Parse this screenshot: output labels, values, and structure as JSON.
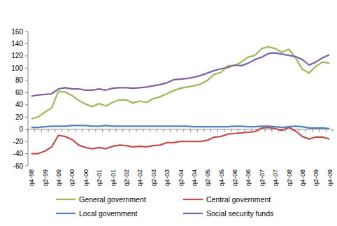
{
  "chart_data": {
    "type": "line",
    "categories": [
      "q4-98",
      null,
      "q2-99",
      null,
      "q4-99",
      null,
      "q2-00",
      null,
      "q4-00",
      null,
      "q2-01",
      null,
      "q4-01",
      null,
      "q2-02",
      null,
      "q4-02",
      null,
      "q2-03",
      null,
      "q4-03",
      null,
      "q2-04",
      null,
      "q4-04",
      null,
      "q2-05",
      null,
      "q4-05",
      null,
      "q2-06",
      null,
      "q4-06",
      null,
      "q2-07",
      null,
      "q4-07",
      null,
      "q2-08",
      null,
      "q4-08",
      null,
      "q2-09",
      null,
      "q4-09"
    ],
    "series": [
      {
        "name": "General government",
        "color": "#9bbb59",
        "values": [
          17,
          20,
          28,
          35,
          62,
          61,
          55,
          47,
          41,
          37,
          42,
          38,
          44,
          48,
          48,
          43,
          46,
          44,
          50,
          53,
          58,
          63,
          67,
          69,
          71,
          74,
          80,
          90,
          93,
          104,
          104,
          110,
          118,
          121,
          132,
          135,
          132,
          126,
          131,
          117,
          98,
          92,
          103,
          110,
          108
        ]
      },
      {
        "name": "Central government",
        "color": "#c0504d",
        "values": [
          -40,
          -40,
          -36,
          -29,
          -10,
          -12,
          -17,
          -26,
          -30,
          -32,
          -30,
          -32,
          -28,
          -26,
          -27,
          -29,
          -28,
          -29,
          -27,
          -26,
          -22,
          -22,
          -20,
          -20,
          -20,
          -20,
          -18,
          -13,
          -12,
          -8,
          -7,
          -6,
          -5,
          -4,
          2,
          3,
          1,
          -2,
          3,
          -3,
          -12,
          -16,
          -13,
          -13,
          -16
        ]
      },
      {
        "name": "Local government",
        "color": "#4f81bd",
        "values": [
          3,
          3,
          4,
          5,
          5,
          5,
          6,
          6,
          6,
          5,
          5,
          6,
          5,
          5,
          5,
          5,
          5,
          5,
          5,
          5,
          5,
          5,
          5,
          5,
          4,
          4,
          4,
          4,
          4,
          4,
          5,
          5,
          4,
          4,
          5,
          5,
          4,
          3,
          4,
          5,
          4,
          2,
          2,
          2,
          1
        ]
      },
      {
        "name": "Social security funds",
        "color": "#8064a2",
        "values": [
          54,
          56,
          57,
          58,
          66,
          68,
          66,
          66,
          64,
          64,
          66,
          64,
          67,
          68,
          68,
          67,
          68,
          69,
          71,
          73,
          76,
          81,
          82,
          83,
          85,
          88,
          92,
          96,
          99,
          101,
          105,
          104,
          108,
          114,
          118,
          124,
          125,
          123,
          121,
          119,
          114,
          105,
          110,
          117,
          122
        ]
      }
    ],
    "ylim": [
      -60,
      160
    ],
    "yticks": [
      -60,
      -40,
      -20,
      0,
      20,
      40,
      60,
      80,
      100,
      120,
      140,
      160
    ],
    "grid": false,
    "legend": "bottom",
    "marker": "none",
    "line_style": "solid"
  }
}
